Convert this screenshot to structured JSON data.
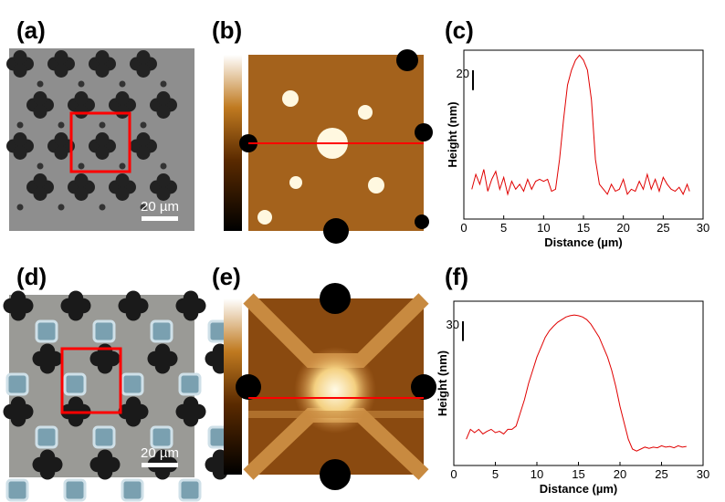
{
  "panel_labels": [
    "(a)",
    "(b)",
    "(c)",
    "(d)",
    "(e)",
    "(f)"
  ],
  "scale_bar_labels": [
    "20 µm",
    "20 µm"
  ],
  "chart_data": [
    {
      "type": "line",
      "x_label": "Distance (µm)",
      "y_label": "Height (nm)",
      "color": "#e00000",
      "xlim": [
        0,
        30
      ],
      "xticks": [
        0,
        5,
        10,
        15,
        20,
        25,
        30
      ],
      "ylim": [
        0,
        170
      ],
      "scale_bar": 20,
      "x": [
        1.0,
        1.5,
        2.0,
        2.5,
        3.0,
        3.5,
        4.0,
        4.5,
        5.0,
        5.5,
        6.0,
        6.5,
        7.0,
        7.5,
        8.0,
        8.5,
        9.0,
        9.5,
        10.0,
        10.5,
        11.0,
        11.5,
        12.0,
        12.5,
        13.0,
        13.5,
        14.0,
        14.5,
        15.0,
        15.5,
        16.0,
        16.5,
        17.0,
        17.5,
        18.0,
        18.5,
        19.0,
        19.5,
        20.0,
        20.5,
        21.0,
        21.5,
        22.0,
        22.5,
        23.0,
        23.5,
        24.0,
        24.5,
        25.0,
        25.5,
        26.0,
        26.5,
        27.0,
        27.5,
        28.0,
        28.3
      ],
      "values": [
        30,
        45,
        35,
        50,
        28,
        40,
        48,
        30,
        42,
        25,
        38,
        30,
        35,
        28,
        40,
        30,
        38,
        40,
        38,
        40,
        28,
        30,
        60,
        100,
        135,
        150,
        160,
        165,
        160,
        150,
        120,
        60,
        35,
        30,
        25,
        35,
        28,
        30,
        40,
        25,
        30,
        28,
        38,
        30,
        45,
        30,
        40,
        28,
        42,
        35,
        30,
        28,
        32,
        25,
        35,
        28
      ]
    },
    {
      "type": "line",
      "x_label": "Distance (µm)",
      "y_label": "Height (nm)",
      "color": "#e00000",
      "xlim": [
        0,
        30
      ],
      "xticks": [
        0,
        5,
        10,
        15,
        20,
        25,
        30
      ],
      "ylim": [
        0,
        250
      ],
      "scale_bar": 30,
      "x": [
        1.5,
        2,
        2.5,
        3,
        3.5,
        4,
        4.5,
        5,
        5.5,
        6,
        6.5,
        7,
        7.5,
        8,
        8.5,
        9,
        9.5,
        10,
        10.5,
        11,
        11.5,
        12,
        12.5,
        13,
        13.5,
        14,
        14.5,
        15,
        15.5,
        16,
        16.5,
        17,
        17.5,
        18,
        18.5,
        19,
        19.5,
        20,
        20.5,
        21,
        21.5,
        22,
        22.5,
        23,
        23.5,
        24,
        24.5,
        25,
        25.5,
        26,
        26.5,
        27,
        27.5,
        28
      ],
      "values": [
        40,
        55,
        50,
        55,
        48,
        52,
        55,
        50,
        52,
        48,
        55,
        55,
        60,
        80,
        100,
        125,
        145,
        165,
        180,
        195,
        205,
        212,
        218,
        222,
        226,
        228,
        229,
        228,
        226,
        222,
        215,
        205,
        195,
        180,
        165,
        145,
        120,
        90,
        65,
        40,
        25,
        22,
        25,
        28,
        26,
        28,
        27,
        30,
        28,
        29,
        27,
        30,
        28,
        29
      ]
    }
  ]
}
